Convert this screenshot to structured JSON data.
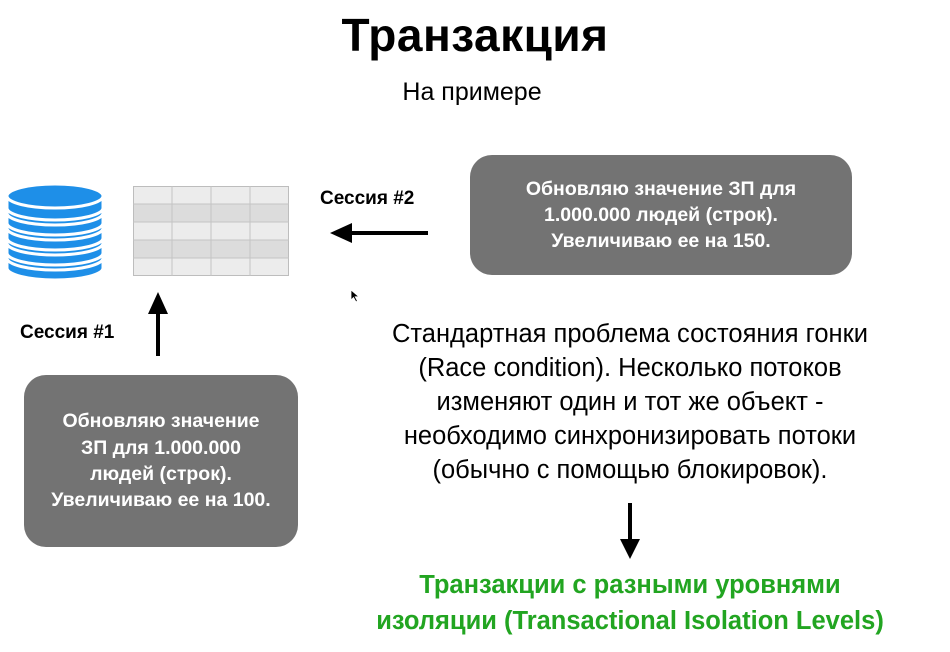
{
  "title": "Транзакция",
  "subtitle": "На примере",
  "session2": {
    "label": "Сессия #2",
    "lines": [
      "Обновляю значение ЗП для",
      "1.000.000 людей (строк).",
      "Увеличиваю ее на 150."
    ]
  },
  "session1": {
    "label": "Сессия #1",
    "lines": [
      "Обновляю значение",
      "ЗП для 1.000.000",
      "людей (строк).",
      "Увеличиваю ее на 100."
    ]
  },
  "problem": {
    "lines": [
      "Стандартная проблема состояния гонки",
      "(Race condition). Несколько потоков",
      "изменяют один и тот же объект -",
      "необходимо синхронизировать потоки",
      "(обычно с помощью блокировок)."
    ]
  },
  "result": {
    "lines": [
      "Транзакции с разными уровнями",
      "изоляции (Transactional Isolation Levels)"
    ],
    "color": "#22a521"
  },
  "colors": {
    "database": "#1e8fe8",
    "box": "#737373",
    "table_fill": "#e3e3e3"
  },
  "icons": [
    "database-icon",
    "table-icon",
    "arrow-left-icon",
    "arrow-up-icon",
    "arrow-down-icon",
    "cursor-icon"
  ]
}
